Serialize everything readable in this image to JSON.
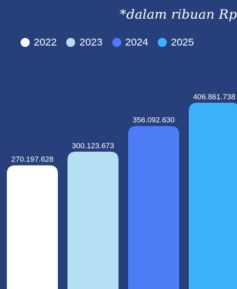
{
  "note": "*dalam ribuan Rp",
  "legend": [
    {
      "label": "2022",
      "color": "#ffffff"
    },
    {
      "label": "2023",
      "color": "#b5dff3"
    },
    {
      "label": "2024",
      "color": "#4e7cf4"
    },
    {
      "label": "2025",
      "color": "#3ab3fb"
    }
  ],
  "chart_data": {
    "type": "bar",
    "categories": [
      "2022",
      "2023",
      "2024",
      "2025"
    ],
    "values": [
      270197628,
      300123673,
      356092630,
      406861738
    ],
    "value_labels": [
      "270.197.628",
      "300.123.673",
      "356.092.630",
      "406.861.738"
    ],
    "colors": [
      "#ffffff",
      "#b5dff3",
      "#4e7cf4",
      "#3ab3fb"
    ],
    "note": "*dalam ribuan Rp",
    "legend_position": "top",
    "grid": false
  }
}
